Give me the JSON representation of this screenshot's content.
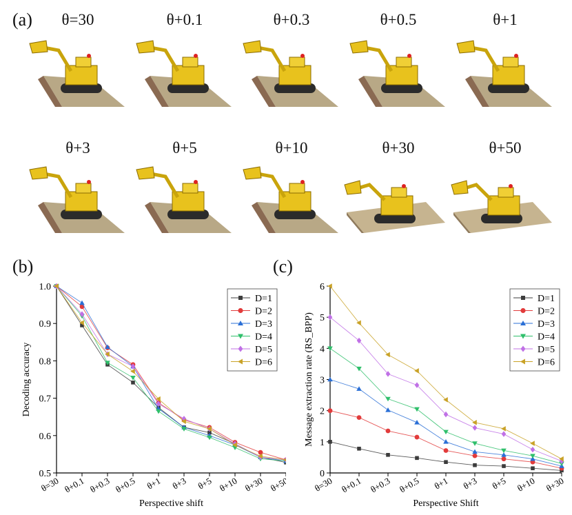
{
  "panel_labels": {
    "a": "(a)",
    "b": "(b)",
    "c": "(c)"
  },
  "thumbnails": {
    "titles": [
      "θ=30",
      "θ+0.1",
      "θ+0.3",
      "θ+0.5",
      "θ+1",
      "θ+3",
      "θ+5",
      "θ+10",
      "θ+30",
      "θ+50"
    ],
    "subject": "yellow lego excavator on a brick baseplate"
  },
  "colors": {
    "D=1": "#3c3c3c",
    "D=2": "#e23b3b",
    "D=3": "#2a6fd6",
    "D=4": "#2fbf6b",
    "D=5": "#c070e6",
    "D=6": "#c9a227"
  },
  "chart_data": [
    {
      "type": "line",
      "id": "b",
      "xlabel": "Perspective shift",
      "ylabel": "Decoding accuracy",
      "categories": [
        "θ=30",
        "θ+0.1",
        "θ+0.3",
        "θ+0.5",
        "θ+1",
        "θ+3",
        "θ+5",
        "θ+10",
        "θ+30",
        "θ+50"
      ],
      "ylim": [
        0.5,
        1.0
      ],
      "yticks": [
        "0.5",
        "0.6",
        "0.7",
        "0.8",
        "0.9",
        "1.0"
      ],
      "ytick_values": [
        0.5,
        0.6,
        0.7,
        0.8,
        0.9,
        1.0
      ],
      "legend_position": "top-right",
      "series": [
        {
          "name": "D=1",
          "marker": "square",
          "values": [
            1.0,
            0.895,
            0.79,
            0.742,
            0.675,
            0.622,
            0.608,
            0.578,
            0.542,
            0.528
          ]
        },
        {
          "name": "D=2",
          "marker": "circle",
          "values": [
            1.0,
            0.945,
            0.835,
            0.79,
            0.688,
            0.642,
            0.622,
            0.582,
            0.555,
            0.535
          ]
        },
        {
          "name": "D=3",
          "marker": "triangle-up",
          "values": [
            1.0,
            0.955,
            0.837,
            0.785,
            0.672,
            0.622,
            0.6,
            0.575,
            0.542,
            0.532
          ]
        },
        {
          "name": "D=4",
          "marker": "triangle-down",
          "values": [
            1.0,
            0.92,
            0.795,
            0.755,
            0.665,
            0.618,
            0.595,
            0.568,
            0.538,
            0.532
          ]
        },
        {
          "name": "D=5",
          "marker": "diamond",
          "values": [
            1.0,
            0.925,
            0.818,
            0.785,
            0.685,
            0.645,
            0.618,
            0.578,
            0.542,
            0.535
          ]
        },
        {
          "name": "D=6",
          "marker": "triangle-left",
          "values": [
            1.0,
            0.902,
            0.818,
            0.772,
            0.698,
            0.638,
            0.618,
            0.575,
            0.545,
            0.535
          ]
        }
      ]
    },
    {
      "type": "line",
      "id": "c",
      "xlabel": "Perspective Shift",
      "ylabel": "Message extraction rate (RS_BPP)",
      "categories": [
        "θ=30",
        "θ+0.1",
        "θ+0.3",
        "θ+0.5",
        "θ+1",
        "θ+3",
        "θ+5",
        "θ+10",
        "θ+30"
      ],
      "ylim": [
        0,
        6
      ],
      "yticks": [
        "0",
        "1",
        "2",
        "3",
        "4",
        "5",
        "6"
      ],
      "ytick_values": [
        0,
        1,
        2,
        3,
        4,
        5,
        6
      ],
      "legend_position": "top-right",
      "series": [
        {
          "name": "D=1",
          "marker": "square",
          "values": [
            1.0,
            0.78,
            0.58,
            0.48,
            0.35,
            0.25,
            0.22,
            0.15,
            0.08
          ]
        },
        {
          "name": "D=2",
          "marker": "circle",
          "values": [
            2.0,
            1.78,
            1.35,
            1.15,
            0.72,
            0.55,
            0.45,
            0.35,
            0.15
          ]
        },
        {
          "name": "D=3",
          "marker": "triangle-up",
          "values": [
            3.0,
            2.7,
            2.02,
            1.62,
            1.0,
            0.68,
            0.58,
            0.45,
            0.22
          ]
        },
        {
          "name": "D=4",
          "marker": "triangle-down",
          "values": [
            4.0,
            3.35,
            2.38,
            2.05,
            1.32,
            0.95,
            0.72,
            0.55,
            0.3
          ]
        },
        {
          "name": "D=5",
          "marker": "diamond",
          "values": [
            5.0,
            4.25,
            3.18,
            2.82,
            1.88,
            1.45,
            1.25,
            0.75,
            0.38
          ]
        },
        {
          "name": "D=6",
          "marker": "triangle-left",
          "values": [
            6.0,
            4.82,
            3.8,
            3.28,
            2.35,
            1.62,
            1.42,
            0.95,
            0.45
          ]
        }
      ]
    }
  ]
}
